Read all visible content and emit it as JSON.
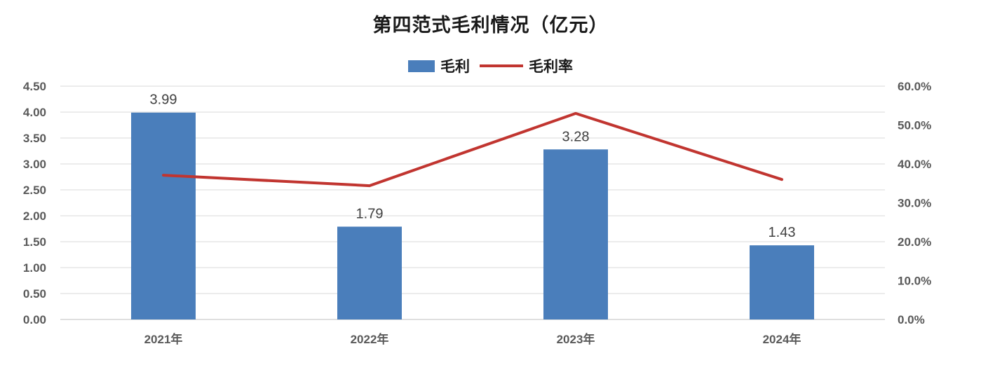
{
  "chart_data": {
    "type": "bar+line",
    "title": "第四范式毛利情况（亿元）",
    "categories": [
      "2021年",
      "2022年",
      "2023年",
      "2024年"
    ],
    "series": [
      {
        "name": "毛利",
        "type": "bar",
        "axis": "left",
        "color": "#4A7EBB",
        "values": [
          3.99,
          1.79,
          3.28,
          1.43
        ],
        "labels": [
          "3.99",
          "1.79",
          "3.28",
          "1.43"
        ]
      },
      {
        "name": "毛利率",
        "type": "line",
        "axis": "right",
        "color": "#C13530",
        "values": [
          37.1,
          34.4,
          53.0,
          36.0
        ]
      }
    ],
    "left_axis": {
      "min": 0,
      "max": 4.5,
      "step": 0.5,
      "tick_labels": [
        "0.00",
        "0.50",
        "1.00",
        "1.50",
        "2.00",
        "2.50",
        "3.00",
        "3.50",
        "4.00",
        "4.50"
      ]
    },
    "right_axis": {
      "min": 0,
      "max": 60,
      "step": 10,
      "tick_labels": [
        "0.0%",
        "10.0%",
        "20.0%",
        "30.0%",
        "40.0%",
        "50.0%",
        "60.0%"
      ]
    },
    "grid": true,
    "legend_position": "top",
    "colors": {
      "gridline": "#d9d9d9",
      "axis_line": "#bfbfbf",
      "tick_text": "#595959",
      "title_text": "#1a1a1a"
    }
  }
}
